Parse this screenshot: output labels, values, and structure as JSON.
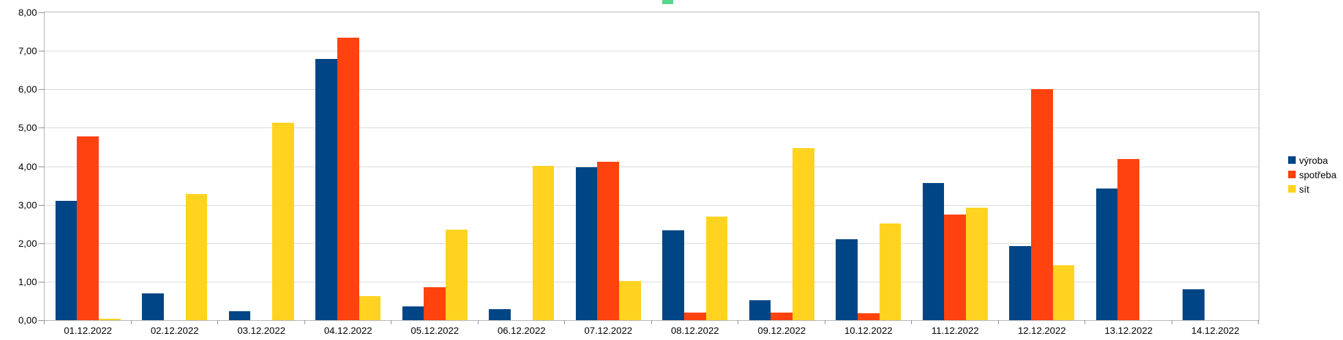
{
  "chart": {
    "background": "#ffffff",
    "grid_color": "#d9d9d9",
    "plot_border_color": "#b2b2b2",
    "tick_color": "#8f8f8f",
    "text_color": "#000000",
    "artifact_color": "#58d68d"
  },
  "chart_data": {
    "type": "bar",
    "categories": [
      "01.12.2022",
      "02.12.2022",
      "03.12.2022",
      "04.12.2022",
      "05.12.2022",
      "06.12.2022",
      "07.12.2022",
      "08.12.2022",
      "09.12.2022",
      "10.12.2022",
      "11.12.2022",
      "12.12.2022",
      "13.12.2022",
      "14.12.2022"
    ],
    "series": [
      {
        "name": "výroba",
        "key": "vyroba",
        "color": "#004586",
        "values": [
          3.1,
          0.7,
          0.23,
          6.79,
          0.36,
          0.29,
          3.98,
          2.33,
          0.51,
          2.1,
          3.56,
          1.93,
          3.42,
          0.8
        ]
      },
      {
        "name": "spotřeba",
        "key": "spotreba",
        "color": "#ff420e",
        "values": [
          4.78,
          0.0,
          0.0,
          7.34,
          0.85,
          0.0,
          4.12,
          0.19,
          0.19,
          0.18,
          2.74,
          6.01,
          4.19,
          0.0
        ]
      },
      {
        "name": "sít",
        "key": "sit",
        "color": "#ffd320",
        "values": [
          0.04,
          3.28,
          5.13,
          0.63,
          2.35,
          4.01,
          1.02,
          2.69,
          4.47,
          2.52,
          2.93,
          1.42,
          0.0,
          0.0
        ]
      }
    ],
    "ylim": [
      0,
      8
    ],
    "ytick_step": 1,
    "ytick_labels": [
      "0,00",
      "1,00",
      "2,00",
      "3,00",
      "4,00",
      "5,00",
      "6,00",
      "7,00",
      "8,00"
    ],
    "grid": true,
    "legend_position": "right",
    "xlabel": "",
    "ylabel": ""
  }
}
